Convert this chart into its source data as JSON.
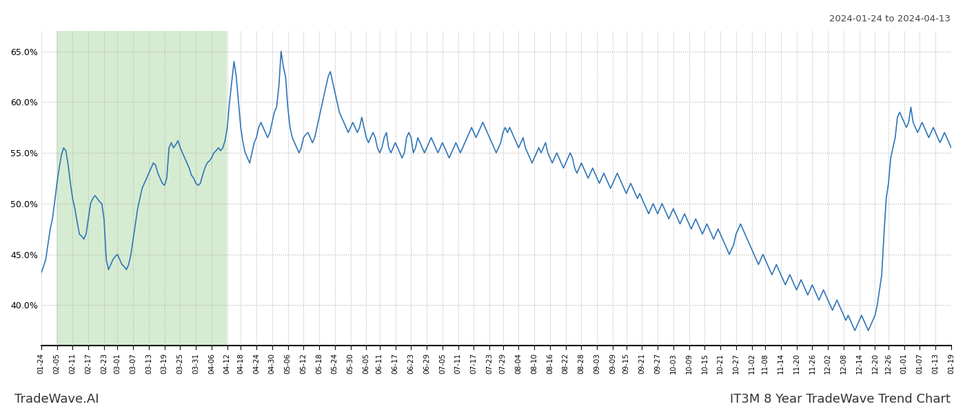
{
  "title_top_right": "2024-01-24 to 2024-04-13",
  "title_bottom_right": "IT3M 8 Year TradeWave Trend Chart",
  "title_bottom_left": "TradeWave.AI",
  "line_color": "#2e75b6",
  "line_width": 1.2,
  "bg_color": "#ffffff",
  "grid_color": "#b0b0b0",
  "highlight_color": "#d6ecd2",
  "ylim": [
    36,
    67
  ],
  "yticks": [
    40.0,
    45.0,
    50.0,
    55.0,
    60.0,
    65.0
  ],
  "x_labels": [
    "01-24",
    "02-05",
    "02-11",
    "02-17",
    "02-23",
    "03-01",
    "03-07",
    "03-13",
    "03-19",
    "03-25",
    "03-31",
    "04-06",
    "04-12",
    "04-18",
    "04-24",
    "04-30",
    "05-06",
    "05-12",
    "05-18",
    "05-24",
    "05-30",
    "06-05",
    "06-11",
    "06-17",
    "06-23",
    "06-29",
    "07-05",
    "07-11",
    "07-17",
    "07-23",
    "07-29",
    "08-04",
    "08-10",
    "08-16",
    "08-22",
    "08-28",
    "09-03",
    "09-09",
    "09-15",
    "09-21",
    "09-27",
    "10-03",
    "10-09",
    "10-15",
    "10-21",
    "10-27",
    "11-02",
    "11-08",
    "11-14",
    "11-20",
    "11-26",
    "12-02",
    "12-08",
    "12-14",
    "12-20",
    "12-26",
    "01-01",
    "01-07",
    "01-13",
    "01-19"
  ],
  "values": [
    43.2,
    43.8,
    44.5,
    46.0,
    47.5,
    48.5,
    50.2,
    52.0,
    53.5,
    54.8,
    55.5,
    55.2,
    53.8,
    52.0,
    50.5,
    49.5,
    48.2,
    47.0,
    46.8,
    46.5,
    47.0,
    48.5,
    50.0,
    50.5,
    50.8,
    50.5,
    50.2,
    50.0,
    48.5,
    44.5,
    43.5,
    44.0,
    44.5,
    44.8,
    45.0,
    44.5,
    44.0,
    43.8,
    43.5,
    44.0,
    45.0,
    46.5,
    48.0,
    49.5,
    50.5,
    51.5,
    52.0,
    52.5,
    53.0,
    53.5,
    54.0,
    53.8,
    53.0,
    52.5,
    52.0,
    51.8,
    52.5,
    55.5,
    56.0,
    55.5,
    55.8,
    56.2,
    55.5,
    55.0,
    54.5,
    54.0,
    53.5,
    52.8,
    52.5,
    52.0,
    51.8,
    52.0,
    52.8,
    53.5,
    54.0,
    54.2,
    54.5,
    55.0,
    55.2,
    55.5,
    55.2,
    55.5,
    56.2,
    57.5,
    60.0,
    62.0,
    64.0,
    62.5,
    60.0,
    57.5,
    56.0,
    55.0,
    54.5,
    54.0,
    55.0,
    56.0,
    56.5,
    57.5,
    58.0,
    57.5,
    57.0,
    56.5,
    57.0,
    58.0,
    59.0,
    59.5,
    61.5,
    65.0,
    63.5,
    62.5,
    59.5,
    57.5,
    56.5,
    56.0,
    55.5,
    55.0,
    55.5,
    56.5,
    56.8,
    57.0,
    56.5,
    56.0,
    56.5,
    57.5,
    58.5,
    59.5,
    60.5,
    61.5,
    62.5,
    63.0,
    62.0,
    61.0,
    60.0,
    59.0,
    58.5,
    58.0,
    57.5,
    57.0,
    57.5,
    58.0,
    57.5,
    57.0,
    57.5,
    58.5,
    57.5,
    56.5,
    56.0,
    56.5,
    57.0,
    56.5,
    55.5,
    55.0,
    55.5,
    56.5,
    57.0,
    55.5,
    55.0,
    55.5,
    56.0,
    55.5,
    55.0,
    54.5,
    55.0,
    56.5,
    57.0,
    56.5,
    55.0,
    55.5,
    56.5,
    56.0,
    55.5,
    55.0,
    55.5,
    56.0,
    56.5,
    56.0,
    55.5,
    55.0,
    55.5,
    56.0,
    55.5,
    55.0,
    54.5,
    55.0,
    55.5,
    56.0,
    55.5,
    55.0,
    55.5,
    56.0,
    56.5,
    57.0,
    57.5,
    57.0,
    56.5,
    57.0,
    57.5,
    58.0,
    57.5,
    57.0,
    56.5,
    56.0,
    55.5,
    55.0,
    55.5,
    56.0,
    57.0,
    57.5,
    57.0,
    57.5,
    57.0,
    56.5,
    56.0,
    55.5,
    56.0,
    56.5,
    55.5,
    55.0,
    54.5,
    54.0,
    54.5,
    55.0,
    55.5,
    55.0,
    55.5,
    56.0,
    55.0,
    54.5,
    54.0,
    54.5,
    55.0,
    54.5,
    54.0,
    53.5,
    54.0,
    54.5,
    55.0,
    54.5,
    53.5,
    53.0,
    53.5,
    54.0,
    53.5,
    53.0,
    52.5,
    53.0,
    53.5,
    53.0,
    52.5,
    52.0,
    52.5,
    53.0,
    52.5,
    52.0,
    51.5,
    52.0,
    52.5,
    53.0,
    52.5,
    52.0,
    51.5,
    51.0,
    51.5,
    52.0,
    51.5,
    51.0,
    50.5,
    51.0,
    50.5,
    50.0,
    49.5,
    49.0,
    49.5,
    50.0,
    49.5,
    49.0,
    49.5,
    50.0,
    49.5,
    49.0,
    48.5,
    49.0,
    49.5,
    49.0,
    48.5,
    48.0,
    48.5,
    49.0,
    48.5,
    48.0,
    47.5,
    48.0,
    48.5,
    48.0,
    47.5,
    47.0,
    47.5,
    48.0,
    47.5,
    47.0,
    46.5,
    47.0,
    47.5,
    47.0,
    46.5,
    46.0,
    45.5,
    45.0,
    45.5,
    46.0,
    47.0,
    47.5,
    48.0,
    47.5,
    47.0,
    46.5,
    46.0,
    45.5,
    45.0,
    44.5,
    44.0,
    44.5,
    45.0,
    44.5,
    44.0,
    43.5,
    43.0,
    43.5,
    44.0,
    43.5,
    43.0,
    42.5,
    42.0,
    42.5,
    43.0,
    42.5,
    42.0,
    41.5,
    42.0,
    42.5,
    42.0,
    41.5,
    41.0,
    41.5,
    42.0,
    41.5,
    41.0,
    40.5,
    41.0,
    41.5,
    41.0,
    40.5,
    40.0,
    39.5,
    40.0,
    40.5,
    40.0,
    39.5,
    39.0,
    38.5,
    39.0,
    38.5,
    38.0,
    37.5,
    38.0,
    38.5,
    39.0,
    38.5,
    38.0,
    37.5,
    38.0,
    38.5,
    39.0,
    40.0,
    41.5,
    43.0,
    47.0,
    50.5,
    52.0,
    54.5,
    55.5,
    56.5,
    58.5,
    59.0,
    58.5,
    58.0,
    57.5,
    58.0,
    59.5,
    58.0,
    57.5,
    57.0,
    57.5,
    58.0,
    57.5,
    57.0,
    56.5,
    57.0,
    57.5,
    57.0,
    56.5,
    56.0,
    56.5,
    57.0,
    56.5,
    56.0,
    55.5
  ],
  "highlight_start_label": "02-05",
  "highlight_end_label": "04-12"
}
